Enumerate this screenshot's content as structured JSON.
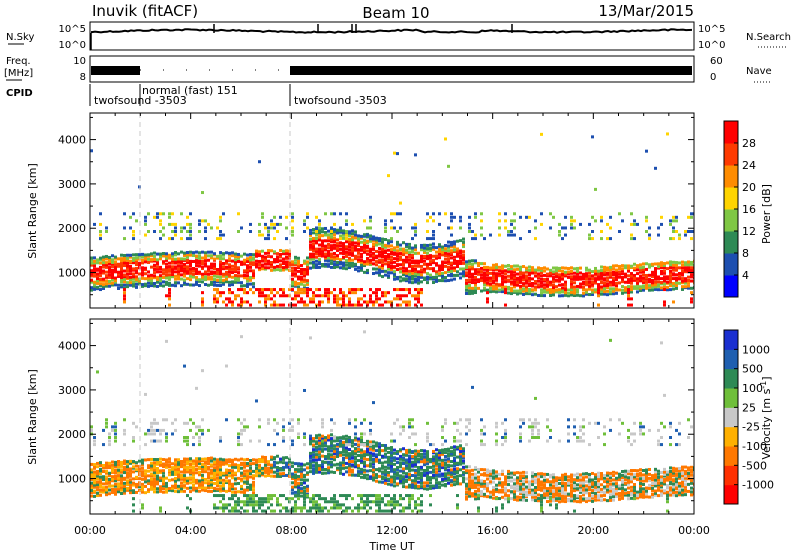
{
  "header": {
    "station": "Inuvik (fitACF)",
    "beam": "Beam 10",
    "date": "13/Mar/2015"
  },
  "panel_labels": {
    "nsky": "N.Sky",
    "freq_line1": "Freq.",
    "freq_line2": "[MHz]",
    "cpid": "CPID",
    "nsearch": "N.Search",
    "nave": "Nave"
  },
  "noise_panel": {
    "left_ticks": [
      "10^5",
      "10^0"
    ],
    "right_ticks": [
      "10^5",
      "10^0"
    ]
  },
  "freq_panel": {
    "left_ticks": [
      "10",
      "8"
    ],
    "right_ticks": [
      "60",
      "0"
    ]
  },
  "cpid_segments": [
    {
      "label": "twofsound -3503"
    },
    {
      "label": "normal (fast) 151"
    },
    {
      "label": "twofsound -3503"
    }
  ],
  "chart_data": [
    {
      "type": "heatmap",
      "ylabel": "Slant Range [km]",
      "yticks": [
        "4000",
        "3000",
        "2000",
        "1000"
      ],
      "ylim": [
        200,
        4600
      ],
      "colorbar_label": "Power [dB]",
      "colorbar_ticks": [
        "28",
        "24",
        "20",
        "16",
        "12",
        "8",
        "4"
      ],
      "colors": [
        "#0000ff",
        "#1d4fb0",
        "#2e8a55",
        "#7fc744",
        "#ffd400",
        "#ff8c00",
        "#ff3a00",
        "#ff0000"
      ]
    },
    {
      "type": "heatmap",
      "ylabel": "Slant Range [km]",
      "yticks": [
        "4000",
        "3000",
        "2000",
        "1000"
      ],
      "ylim": [
        200,
        4600
      ],
      "colorbar_label": "Velocity [m s",
      "colorbar_unit_sup": "-1",
      "colorbar_unit_close": "]",
      "colorbar_ticks": [
        "1000",
        "500",
        "100",
        "25",
        "-25",
        "-100",
        "-500",
        "-1000"
      ],
      "colors": [
        "#1a2fd0",
        "#1f5fb0",
        "#2e8a55",
        "#6fbf3a",
        "#c8c8c8",
        "#ffb000",
        "#ff7800",
        "#ff3000",
        "#ff0000"
      ]
    }
  ],
  "xaxis": {
    "ticks": [
      "00:00",
      "04:00",
      "08:00",
      "12:00",
      "16:00",
      "20:00",
      "00:00"
    ],
    "label": "Time UT"
  }
}
